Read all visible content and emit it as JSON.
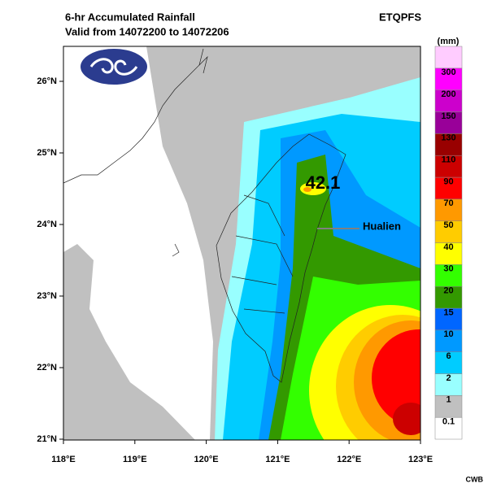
{
  "header": {
    "title": "6-hr Accumulated Rainfall",
    "subtitle": "Valid from 14072200 to 14072206",
    "product": "ETQPFS"
  },
  "map": {
    "lon_ticks": [
      {
        "value": 118,
        "label": "118°E"
      },
      {
        "value": 119,
        "label": "119°E"
      },
      {
        "value": 120,
        "label": "120°E"
      },
      {
        "value": 121,
        "label": "121°E"
      },
      {
        "value": 122,
        "label": "122°E"
      },
      {
        "value": 123,
        "label": "123°E"
      }
    ],
    "lat_ticks": [
      {
        "value": 21,
        "label": "21°N"
      },
      {
        "value": 22,
        "label": "22°N"
      },
      {
        "value": 23,
        "label": "23°N"
      },
      {
        "value": 24,
        "label": "24°N"
      },
      {
        "value": 25,
        "label": "25°N"
      },
      {
        "value": 26,
        "label": "26°N"
      }
    ],
    "max_label": "42.1",
    "place_label": "Hualien"
  },
  "legend": {
    "unit": "(mm)",
    "top_color": "#ffccff",
    "levels": [
      {
        "label": "0.1",
        "color": "#ffffff"
      },
      {
        "label": "1",
        "color": "#c0c0c0"
      },
      {
        "label": "2",
        "color": "#99ffff"
      },
      {
        "label": "6",
        "color": "#00ccff"
      },
      {
        "label": "10",
        "color": "#0099ff"
      },
      {
        "label": "15",
        "color": "#0066ff"
      },
      {
        "label": "20",
        "color": "#339900"
      },
      {
        "label": "30",
        "color": "#33ff00"
      },
      {
        "label": "40",
        "color": "#ffff00"
      },
      {
        "label": "50",
        "color": "#ffcc00"
      },
      {
        "label": "70",
        "color": "#ff9900"
      },
      {
        "label": "90",
        "color": "#ff0000"
      },
      {
        "label": "110",
        "color": "#cc0000"
      },
      {
        "label": "130",
        "color": "#990000"
      },
      {
        "label": "150",
        "color": "#990099"
      },
      {
        "label": "200",
        "color": "#cc00cc"
      },
      {
        "label": "300",
        "color": "#ff00ff"
      }
    ]
  },
  "footer": "CWB"
}
